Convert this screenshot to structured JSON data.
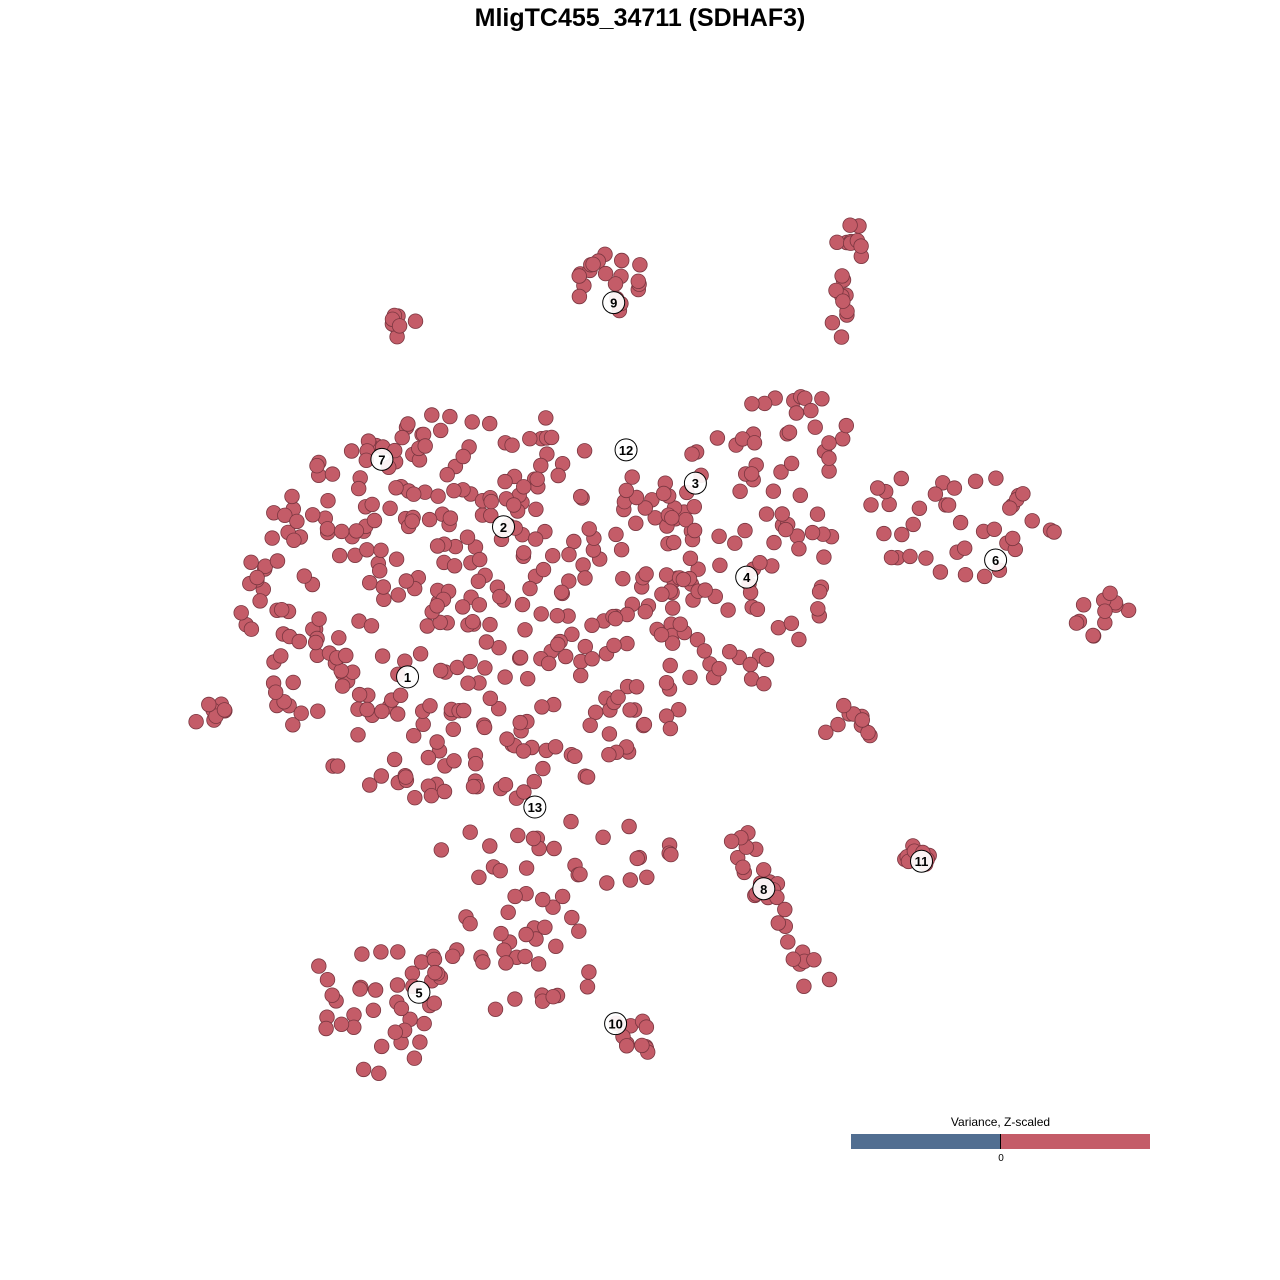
{
  "chart_data": {
    "type": "scatter",
    "title": "MligTC455_34711 (SDHAF3)",
    "xlabel": "",
    "ylabel": "",
    "grid": false,
    "point_color": "#c45c68",
    "point_stroke": "#7a3640",
    "cluster_labels": [
      {
        "label": "1",
        "x": -27.1,
        "y": -4.2
      },
      {
        "label": "2",
        "x": -17.0,
        "y": 11.6
      },
      {
        "label": "3",
        "x": 3.2,
        "y": 16.2
      },
      {
        "label": "4",
        "x": 8.6,
        "y": 6.3
      },
      {
        "label": "5",
        "x": -25.9,
        "y": -37.4
      },
      {
        "label": "6",
        "x": 34.8,
        "y": 8.1
      },
      {
        "label": "7",
        "x": -29.8,
        "y": 18.7
      },
      {
        "label": "8",
        "x": 10.4,
        "y": -26.5
      },
      {
        "label": "9",
        "x": -5.4,
        "y": 35.2
      },
      {
        "label": "10",
        "x": -5.2,
        "y": -40.7
      },
      {
        "label": "11",
        "x": 27.0,
        "y": -23.6
      },
      {
        "label": "12",
        "x": -4.1,
        "y": 19.7
      },
      {
        "label": "13",
        "x": -13.7,
        "y": -17.9
      }
    ],
    "legend": {
      "title": "Variance, Z-scaled",
      "tick_label": "0",
      "low_color": "#516e91",
      "high_color": "#c45c68",
      "placement": "bottom-right"
    }
  }
}
